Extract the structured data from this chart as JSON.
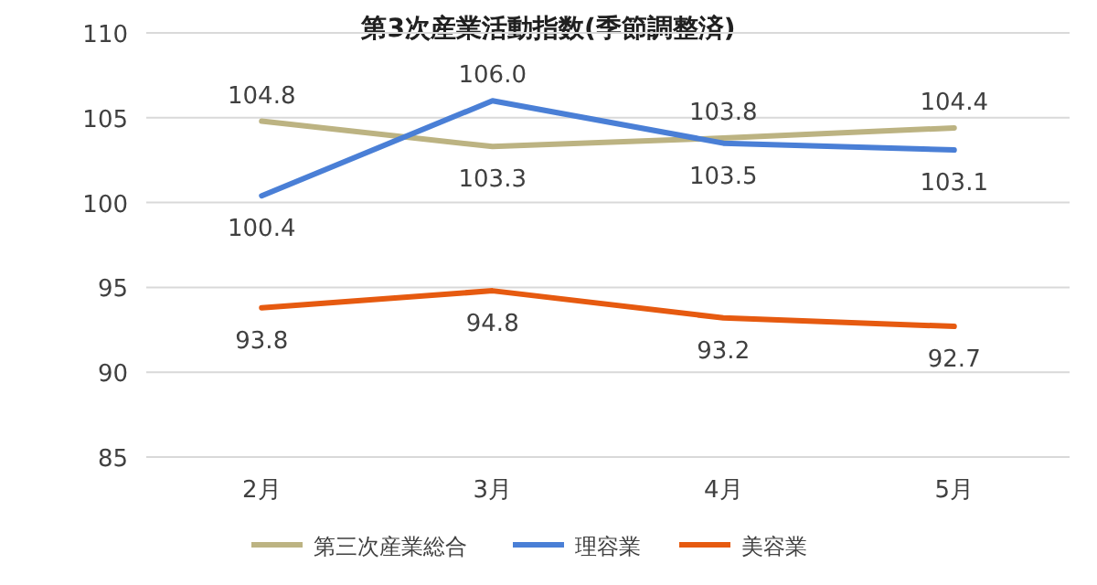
{
  "chart_data": {
    "type": "line",
    "title": "第3次産業活動指数(季節調整済)",
    "categories": [
      "2月",
      "3月",
      "4月",
      "5月"
    ],
    "series": [
      {
        "name": "第三次産業総合",
        "color": "#bcb382",
        "values": [
          104.8,
          103.3,
          103.8,
          104.4
        ],
        "value_labels": [
          "104.8",
          "103.3",
          "103.8",
          "104.4"
        ]
      },
      {
        "name": "理容業",
        "color": "#4a7fd6",
        "values": [
          100.4,
          106.0,
          103.5,
          103.1
        ],
        "value_labels": [
          "100.4",
          "106.0",
          "103.5",
          "103.1"
        ]
      },
      {
        "name": "美容業",
        "color": "#e65a10",
        "values": [
          93.8,
          94.8,
          93.2,
          92.7
        ],
        "value_labels": [
          "93.8",
          "94.8",
          "93.2",
          "92.7"
        ]
      }
    ],
    "ylim": [
      85,
      110
    ],
    "yticks": [
      85,
      90,
      95,
      100,
      105,
      110
    ],
    "grid": "y",
    "legend": "bottom",
    "marker": "none",
    "line_style": "solid"
  }
}
